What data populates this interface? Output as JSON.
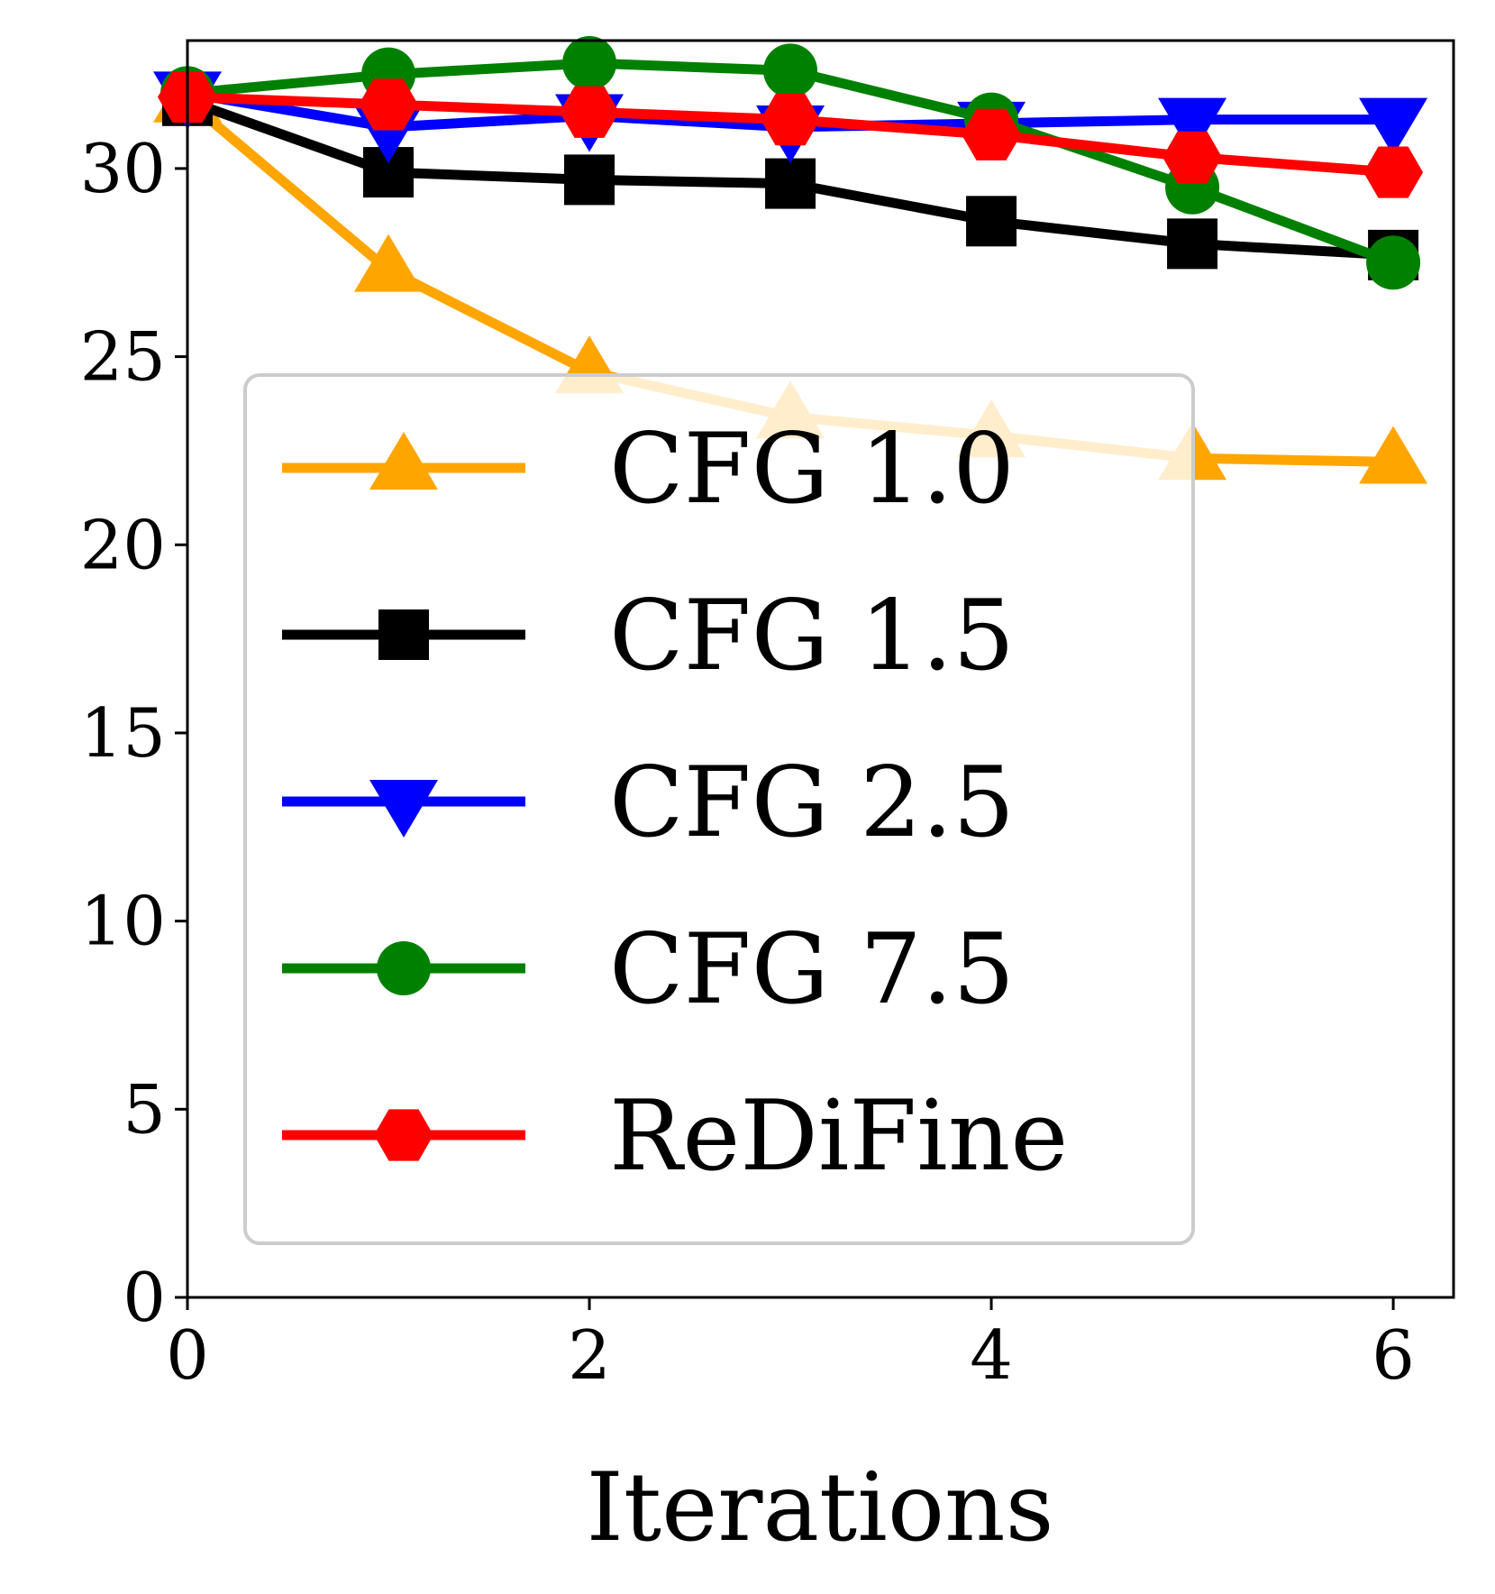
{
  "chart_data": {
    "type": "line",
    "title": "",
    "xlabel": "Iterations",
    "ylabel": "",
    "x": [
      0,
      1,
      2,
      3,
      4,
      5,
      6
    ],
    "xlim": [
      0,
      6.3
    ],
    "ylim": [
      0,
      33.4
    ],
    "xticks": [
      0,
      2,
      4,
      6
    ],
    "yticks": [
      0,
      5,
      10,
      15,
      20,
      25,
      30
    ],
    "grid": false,
    "legend_position": "center-left",
    "series": [
      {
        "name": "CFG 1.0",
        "color": "#ffa500",
        "marker": "triangle-up",
        "values": [
          31.8,
          27.3,
          24.6,
          23.4,
          22.9,
          22.3,
          22.2
        ]
      },
      {
        "name": "CFG 1.5",
        "color": "#000000",
        "marker": "square",
        "values": [
          31.8,
          29.9,
          29.7,
          29.6,
          28.6,
          28.0,
          27.7
        ]
      },
      {
        "name": "CFG 2.5",
        "color": "#0000ff",
        "marker": "triangle-down",
        "values": [
          32.0,
          31.1,
          31.4,
          31.1,
          31.2,
          31.3,
          31.3
        ]
      },
      {
        "name": "CFG 7.5",
        "color": "#008000",
        "marker": "circle",
        "values": [
          32.0,
          32.5,
          32.8,
          32.6,
          31.3,
          29.5,
          27.5
        ]
      },
      {
        "name": "ReDiFine",
        "color": "#ff0000",
        "marker": "hexagon",
        "values": [
          31.9,
          31.7,
          31.5,
          31.3,
          30.9,
          30.3,
          29.9
        ]
      }
    ]
  }
}
